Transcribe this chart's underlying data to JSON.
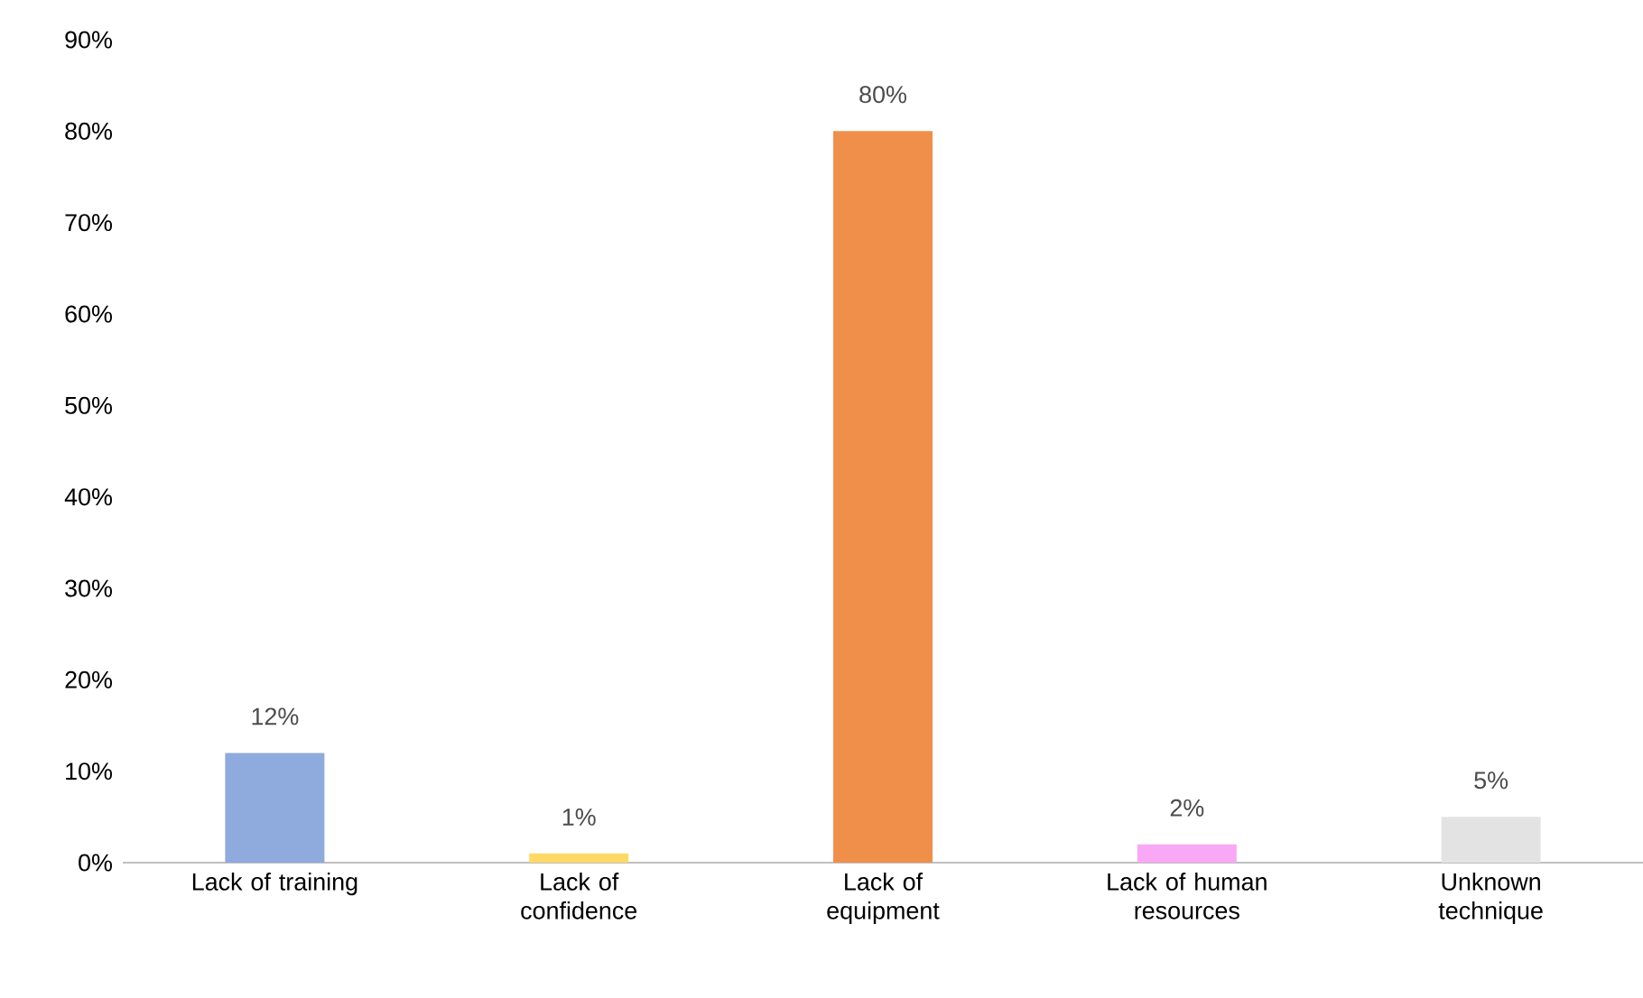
{
  "chart_data": {
    "type": "bar",
    "categories": [
      "Lack of training",
      "Lack of confidence",
      "Lack of equipment",
      "Lack of human resources",
      "Unknown technique"
    ],
    "values": [
      12,
      1,
      80,
      2,
      5
    ],
    "value_labels": [
      "12%",
      "1%",
      "80%",
      "2%",
      "5%"
    ],
    "colors": [
      "#8faadc",
      "#ffd966",
      "#f08f4a",
      "#f9a8f5",
      "#e3e3e3"
    ],
    "ylim": [
      0,
      90
    ],
    "yticks": [
      {
        "value": 0,
        "label": "0%"
      },
      {
        "value": 10,
        "label": "10%"
      },
      {
        "value": 20,
        "label": "20%"
      },
      {
        "value": 30,
        "label": "30%"
      },
      {
        "value": 40,
        "label": "40%"
      },
      {
        "value": 50,
        "label": "50%"
      },
      {
        "value": 60,
        "label": "60%"
      },
      {
        "value": 70,
        "label": "70%"
      },
      {
        "value": 80,
        "label": "80%"
      },
      {
        "value": 90,
        "label": "90%"
      }
    ]
  }
}
